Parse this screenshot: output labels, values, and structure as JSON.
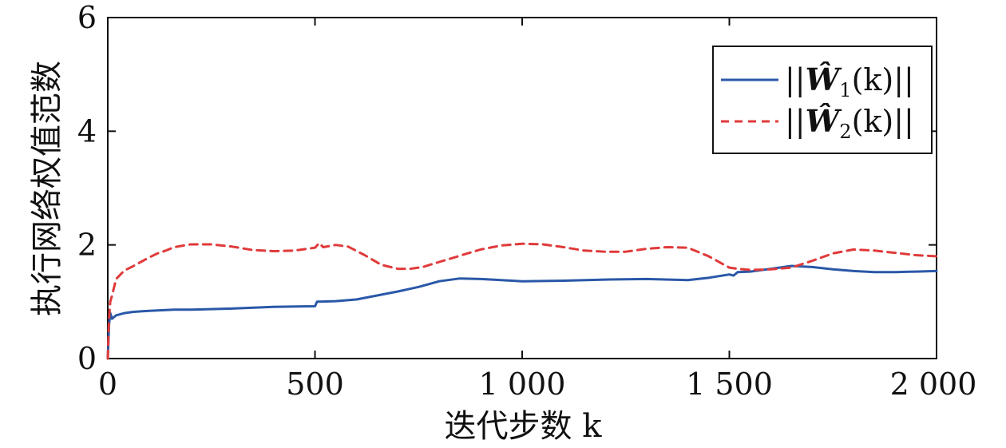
{
  "chart_data": {
    "type": "line",
    "title": "",
    "xlabel": "迭代步数 k",
    "ylabel": "执行网络权值范数",
    "xlim": [
      0,
      2000
    ],
    "ylim": [
      0,
      6
    ],
    "x_ticks": [
      0,
      500,
      1000,
      1500,
      2000
    ],
    "x_tick_labels": [
      "0",
      "500",
      "1 000",
      "1 500",
      "2 000"
    ],
    "y_ticks": [
      0,
      2,
      4,
      6
    ],
    "y_tick_labels": [
      "0",
      "2",
      "4",
      "6"
    ],
    "grid": false,
    "legend_position": "top-right",
    "legend": {
      "entries": [
        {
          "prefix": "||",
          "symbol": "Ŵ",
          "subscript": "1",
          "suffix": "(k)||"
        },
        {
          "prefix": "||",
          "symbol": "Ŵ",
          "subscript": "2",
          "suffix": "(k)||"
        }
      ]
    },
    "series": [
      {
        "color": "#2a58a8",
        "style": "solid",
        "x": [
          0,
          3,
          6,
          10,
          20,
          40,
          60,
          80,
          100,
          130,
          160,
          200,
          300,
          400,
          500,
          505,
          510,
          550,
          600,
          650,
          700,
          750,
          800,
          850,
          900,
          950,
          1000,
          1100,
          1200,
          1300,
          1400,
          1450,
          1500,
          1510,
          1520,
          1550,
          1600,
          1650,
          1700,
          1750,
          1800,
          1850,
          1900,
          1950,
          2000
        ],
        "values": [
          0.0,
          0.6,
          0.8,
          0.7,
          0.76,
          0.8,
          0.82,
          0.83,
          0.84,
          0.85,
          0.86,
          0.86,
          0.88,
          0.91,
          0.92,
          1.0,
          1.0,
          1.01,
          1.04,
          1.11,
          1.18,
          1.26,
          1.36,
          1.41,
          1.4,
          1.38,
          1.36,
          1.37,
          1.39,
          1.4,
          1.38,
          1.42,
          1.48,
          1.46,
          1.52,
          1.53,
          1.58,
          1.63,
          1.61,
          1.57,
          1.54,
          1.52,
          1.52,
          1.53,
          1.54
        ]
      },
      {
        "color": "#e03a3a",
        "style": "dashed",
        "x": [
          0,
          3,
          6,
          10,
          20,
          40,
          60,
          80,
          100,
          120,
          140,
          160,
          200,
          250,
          300,
          350,
          400,
          450,
          500,
          510,
          520,
          550,
          580,
          620,
          660,
          700,
          730,
          760,
          800,
          850,
          900,
          950,
          1000,
          1050,
          1100,
          1150,
          1200,
          1250,
          1300,
          1350,
          1400,
          1450,
          1500,
          1520,
          1550,
          1600,
          1650,
          1700,
          1750,
          1800,
          1850,
          1900,
          1950,
          2000
        ],
        "values": [
          0.0,
          0.7,
          1.0,
          1.1,
          1.4,
          1.55,
          1.62,
          1.7,
          1.78,
          1.85,
          1.9,
          1.96,
          2.01,
          2.01,
          1.97,
          1.91,
          1.89,
          1.9,
          1.95,
          2.03,
          1.96,
          2.0,
          1.97,
          1.82,
          1.65,
          1.58,
          1.58,
          1.61,
          1.7,
          1.81,
          1.92,
          1.99,
          2.02,
          2.01,
          1.96,
          1.9,
          1.88,
          1.88,
          1.93,
          1.96,
          1.95,
          1.8,
          1.6,
          1.58,
          1.56,
          1.57,
          1.6,
          1.72,
          1.85,
          1.92,
          1.9,
          1.86,
          1.82,
          1.8
        ]
      }
    ]
  }
}
